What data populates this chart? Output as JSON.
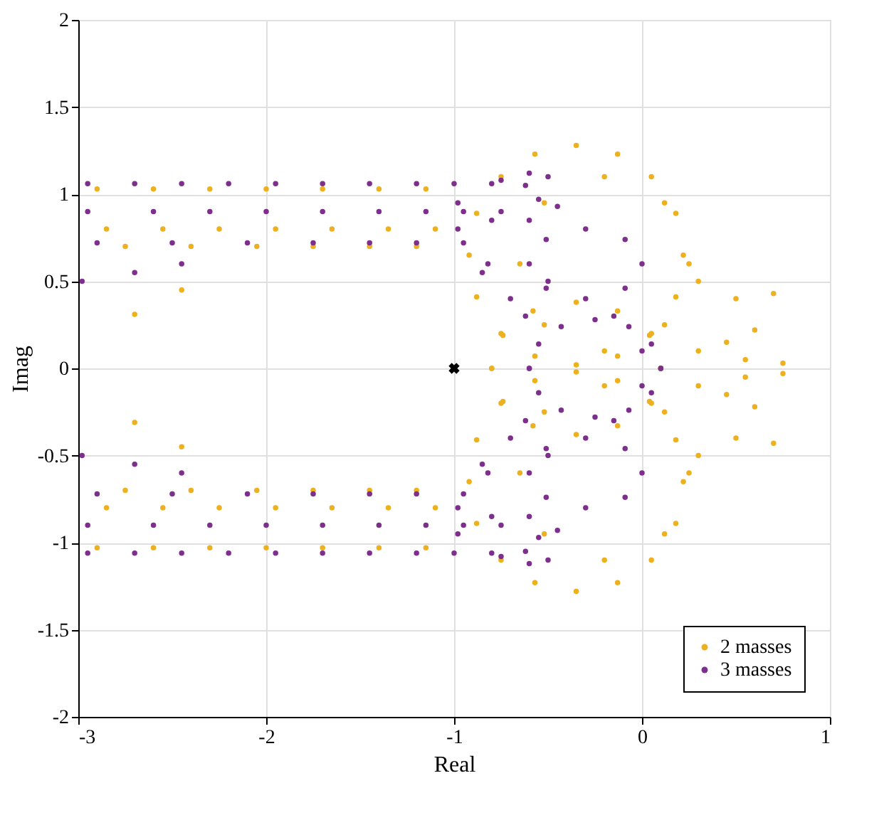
{
  "chart_data": {
    "type": "scatter",
    "xlabel": "Real",
    "ylabel": "Imag",
    "xlim": [
      -3,
      1
    ],
    "xticks": [
      -3,
      -2,
      -1,
      0,
      1
    ],
    "ylim": [
      -2,
      2
    ],
    "yticks": [
      -2,
      -1.5,
      -1,
      -0.5,
      0,
      0.5,
      1,
      1.5,
      2
    ],
    "grid": true,
    "legend": "bottom right",
    "marker": "circle",
    "series": [
      {
        "name": "2 masses",
        "color": "#edb120",
        "x": [
          0.22,
          0.18,
          0.05,
          -0.13,
          -0.35,
          -0.57,
          -0.75,
          -0.88,
          -0.92,
          -0.88,
          -0.75,
          -0.57,
          -0.35,
          -0.13,
          0.05,
          0.18,
          0.25,
          0.12,
          -0.2,
          -0.52,
          -0.65,
          -0.52,
          -0.2,
          0.12,
          0.1,
          0.04,
          -0.13,
          -0.35,
          -0.58,
          -0.74,
          -0.8,
          -2.9,
          -2.6,
          -2.3,
          -2.0,
          -1.7,
          -1.4,
          -1.15,
          -2.85,
          -2.55,
          -2.25,
          -1.95,
          -1.65,
          -1.35,
          -1.1,
          -2.75,
          -2.4,
          -2.05,
          -1.75,
          -1.45,
          -1.2,
          -2.7,
          -2.45,
          0.3,
          0.5,
          0.7,
          0.6,
          0.75,
          0.45,
          0.3,
          0.55,
          0.22,
          0.18,
          0.05,
          -0.13,
          -0.35,
          -0.57,
          -0.75,
          -0.88,
          -0.92,
          -0.88,
          -0.75,
          -0.57,
          -0.35,
          -0.13,
          0.05,
          0.18,
          0.25,
          0.12,
          -0.2,
          -0.52,
          -0.65,
          -0.52,
          -0.2,
          0.12,
          0.1,
          0.04,
          -0.13,
          -0.35,
          -0.58,
          -0.74,
          -0.8,
          -2.9,
          -2.6,
          -2.3,
          -2.0,
          -1.7,
          -1.4,
          -1.15,
          -2.85,
          -2.55,
          -2.25,
          -1.95,
          -1.65,
          -1.35,
          -1.1,
          -2.75,
          -2.4,
          -2.05,
          -1.75,
          -1.45,
          -1.2,
          -2.7,
          -2.45,
          0.3,
          0.5,
          0.7,
          0.6,
          0.75,
          0.45,
          0.3,
          0.55
        ],
        "values": [
          0.65,
          0.89,
          1.1,
          1.23,
          1.28,
          1.23,
          1.1,
          0.89,
          0.65,
          0.41,
          0.2,
          0.07,
          0.02,
          0.07,
          0.2,
          0.41,
          0.6,
          0.95,
          1.1,
          0.95,
          0.6,
          0.25,
          0.1,
          0.25,
          0,
          0.19,
          0.33,
          0.38,
          0.33,
          0.19,
          0,
          1.03,
          1.03,
          1.03,
          1.03,
          1.03,
          1.03,
          1.03,
          0.8,
          0.8,
          0.8,
          0.8,
          0.8,
          0.8,
          0.8,
          0.7,
          0.7,
          0.7,
          0.7,
          0.7,
          0.7,
          0.31,
          0.45,
          0.5,
          0.4,
          0.43,
          0.22,
          0.03,
          0.15,
          0.1,
          0.05,
          -0.65,
          -0.89,
          -1.1,
          -1.23,
          -1.28,
          -1.23,
          -1.1,
          -0.89,
          -0.65,
          -0.41,
          -0.2,
          -0.07,
          -0.02,
          -0.07,
          -0.2,
          -0.41,
          -0.6,
          -0.95,
          -1.1,
          -0.95,
          -0.6,
          -0.25,
          -0.1,
          -0.25,
          0,
          -0.19,
          -0.33,
          -0.38,
          -0.33,
          -0.19,
          0,
          -1.03,
          -1.03,
          -1.03,
          -1.03,
          -1.03,
          -1.03,
          -1.03,
          -0.8,
          -0.8,
          -0.8,
          -0.8,
          -0.8,
          -0.8,
          -0.8,
          -0.7,
          -0.7,
          -0.7,
          -0.7,
          -0.7,
          -0.7,
          -0.31,
          -0.45,
          -0.5,
          -0.4,
          -0.43,
          -0.22,
          -0.03,
          -0.15,
          -0.1,
          -0.05
        ]
      },
      {
        "name": "3 masses",
        "color": "#7e2f8e",
        "x": [
          -2.95,
          -2.7,
          -2.45,
          -2.2,
          -1.95,
          -1.7,
          -1.45,
          -1.2,
          -1.0,
          -0.8,
          -2.95,
          -2.6,
          -2.3,
          -2.0,
          -1.7,
          -1.4,
          -1.15,
          -0.95,
          -2.9,
          -2.5,
          -2.1,
          -1.75,
          -1.45,
          -1.2,
          -0.95,
          -2.98,
          -2.7,
          -2.45,
          -0.75,
          -0.6,
          -0.5,
          -0.62,
          -0.75,
          -0.55,
          -0.45,
          -0.6,
          -0.98,
          -0.98,
          -0.8,
          -0.82,
          0.0,
          -0.09,
          -0.3,
          -0.51,
          -0.6,
          -0.51,
          -0.3,
          -0.09,
          0.1,
          0.05,
          -0.07,
          -0.25,
          -0.43,
          -0.55,
          -0.6,
          -0.62,
          -0.5,
          -0.15,
          0.0,
          -0.85,
          -0.7,
          -2.95,
          -2.7,
          -2.45,
          -2.2,
          -1.95,
          -1.7,
          -1.45,
          -1.2,
          -1.0,
          -0.8,
          -2.95,
          -2.6,
          -2.3,
          -2.0,
          -1.7,
          -1.4,
          -1.15,
          -0.95,
          -2.9,
          -2.5,
          -2.1,
          -1.75,
          -1.45,
          -1.2,
          -0.95,
          -2.98,
          -2.7,
          -2.45,
          -0.75,
          -0.6,
          -0.5,
          -0.62,
          -0.75,
          -0.55,
          -0.45,
          -0.6,
          -0.98,
          -0.98,
          -0.8,
          -0.82,
          0.0,
          -0.09,
          -0.3,
          -0.51,
          -0.6,
          -0.51,
          -0.3,
          -0.09,
          0.1,
          0.05,
          -0.07,
          -0.25,
          -0.43,
          -0.55,
          -0.6,
          -0.62,
          -0.5,
          -0.15,
          0.0,
          -0.85,
          -0.7
        ],
        "values": [
          1.06,
          1.06,
          1.06,
          1.06,
          1.06,
          1.06,
          1.06,
          1.06,
          1.06,
          1.06,
          0.9,
          0.9,
          0.9,
          0.9,
          0.9,
          0.9,
          0.9,
          0.9,
          0.72,
          0.72,
          0.72,
          0.72,
          0.72,
          0.72,
          0.72,
          0.5,
          0.55,
          0.6,
          1.08,
          1.12,
          1.1,
          1.05,
          0.9,
          0.97,
          0.93,
          0.85,
          0.8,
          0.95,
          0.85,
          0.6,
          0.6,
          0.74,
          0.8,
          0.74,
          0.6,
          0.46,
          0.4,
          0.46,
          0,
          0.14,
          0.24,
          0.28,
          0.24,
          0.14,
          0,
          0.3,
          0.5,
          0.3,
          0.1,
          0.55,
          0.4,
          -1.06,
          -1.06,
          -1.06,
          -1.06,
          -1.06,
          -1.06,
          -1.06,
          -1.06,
          -1.06,
          -1.06,
          -0.9,
          -0.9,
          -0.9,
          -0.9,
          -0.9,
          -0.9,
          -0.9,
          -0.9,
          -0.72,
          -0.72,
          -0.72,
          -0.72,
          -0.72,
          -0.72,
          -0.72,
          -0.5,
          -0.55,
          -0.6,
          -1.08,
          -1.12,
          -1.1,
          -1.05,
          -0.9,
          -0.97,
          -0.93,
          -0.85,
          -0.8,
          -0.95,
          -0.85,
          -0.6,
          -0.6,
          -0.74,
          -0.8,
          -0.74,
          -0.6,
          -0.46,
          -0.4,
          -0.46,
          0,
          -0.14,
          -0.24,
          -0.28,
          -0.24,
          -0.14,
          0,
          -0.3,
          -0.5,
          -0.3,
          -0.1,
          -0.55,
          -0.4
        ]
      },
      {
        "color": "#000000",
        "marker": "cross",
        "x": [
          -1
        ],
        "values": [
          0
        ]
      }
    ]
  }
}
